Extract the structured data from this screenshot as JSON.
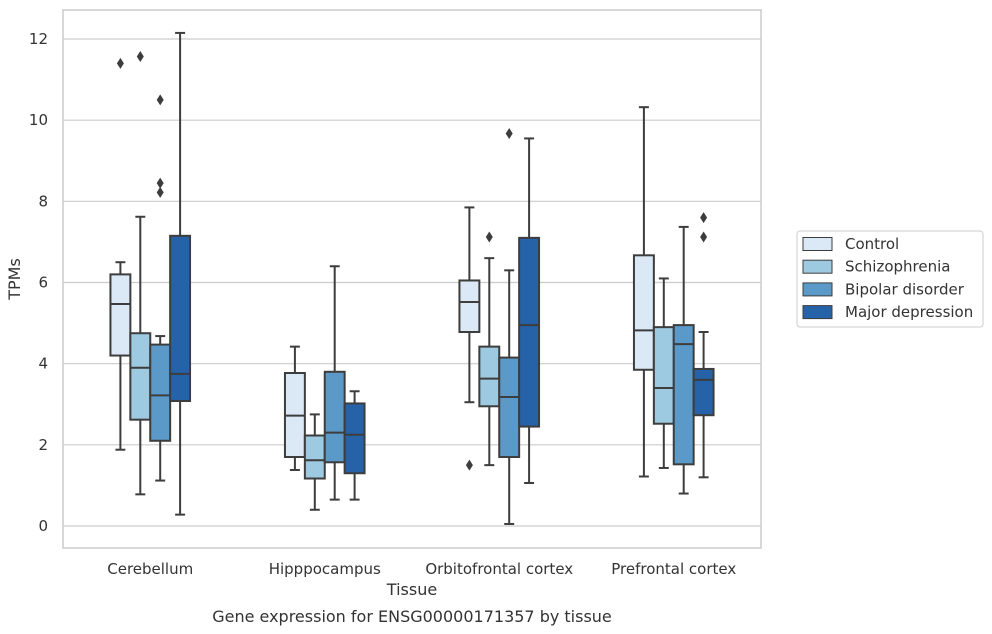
{
  "chart_data": {
    "type": "box",
    "xlabel": "Tissue",
    "ylabel": "TPMs",
    "caption": "Gene expression for ENSG00000171357 by tissue",
    "ylim": [
      -0.5,
      12.7
    ],
    "yticks": [
      0,
      2,
      4,
      6,
      8,
      10,
      12
    ],
    "grid": true,
    "legend_position": "right",
    "categories": [
      "Cerebellum",
      "Hipppocampus",
      "Orbitofrontal cortex",
      "Prefrontal cortex"
    ],
    "series": [
      {
        "name": "Control",
        "color": "#dbe9f6",
        "boxes": [
          {
            "whislo": 1.88,
            "q1": 4.2,
            "med": 5.47,
            "q3": 6.2,
            "whishi": 6.5,
            "fliers": [
              11.4
            ]
          },
          {
            "whislo": 1.38,
            "q1": 1.7,
            "med": 2.72,
            "q3": 3.77,
            "whishi": 4.42,
            "fliers": []
          },
          {
            "whislo": 3.05,
            "q1": 4.78,
            "med": 5.52,
            "q3": 6.05,
            "whishi": 7.85,
            "fliers": [
              1.5
            ]
          },
          {
            "whislo": 1.22,
            "q1": 3.85,
            "med": 4.82,
            "q3": 6.67,
            "whishi": 10.32,
            "fliers": []
          }
        ]
      },
      {
        "name": "Schizophrenia",
        "color": "#9ecae1",
        "boxes": [
          {
            "whislo": 0.78,
            "q1": 2.62,
            "med": 3.9,
            "q3": 4.75,
            "whishi": 7.62,
            "fliers": [
              11.57
            ]
          },
          {
            "whislo": 0.4,
            "q1": 1.17,
            "med": 1.62,
            "q3": 2.23,
            "whishi": 2.75,
            "fliers": []
          },
          {
            "whislo": 1.5,
            "q1": 2.95,
            "med": 3.63,
            "q3": 4.42,
            "whishi": 6.6,
            "fliers": [
              7.12
            ]
          },
          {
            "whislo": 1.43,
            "q1": 2.52,
            "med": 3.4,
            "q3": 4.9,
            "whishi": 6.1,
            "fliers": []
          }
        ]
      },
      {
        "name": "Bipolar disorder",
        "color": "#5b9ac8",
        "boxes": [
          {
            "whislo": 1.12,
            "q1": 2.1,
            "med": 3.22,
            "q3": 4.47,
            "whishi": 4.68,
            "fliers": [
              10.5,
              8.45,
              8.22
            ]
          },
          {
            "whislo": 0.65,
            "q1": 1.57,
            "med": 2.3,
            "q3": 3.8,
            "whishi": 6.4,
            "fliers": []
          },
          {
            "whislo": 0.05,
            "q1": 1.7,
            "med": 3.18,
            "q3": 4.15,
            "whishi": 6.3,
            "fliers": [
              9.67
            ]
          },
          {
            "whislo": 0.8,
            "q1": 1.52,
            "med": 4.48,
            "q3": 4.95,
            "whishi": 7.37,
            "fliers": []
          }
        ]
      },
      {
        "name": "Major depression",
        "color": "#2662a8",
        "boxes": [
          {
            "whislo": 0.28,
            "q1": 3.08,
            "med": 3.75,
            "q3": 7.15,
            "whishi": 12.15,
            "fliers": []
          },
          {
            "whislo": 0.65,
            "q1": 1.3,
            "med": 2.25,
            "q3": 3.02,
            "whishi": 3.32,
            "fliers": []
          },
          {
            "whislo": 1.06,
            "q1": 2.45,
            "med": 4.95,
            "q3": 7.1,
            "whishi": 9.55,
            "fliers": []
          },
          {
            "whislo": 1.2,
            "q1": 2.73,
            "med": 3.6,
            "q3": 3.87,
            "whishi": 4.78,
            "fliers": [
              7.6,
              7.12
            ]
          }
        ]
      }
    ]
  }
}
